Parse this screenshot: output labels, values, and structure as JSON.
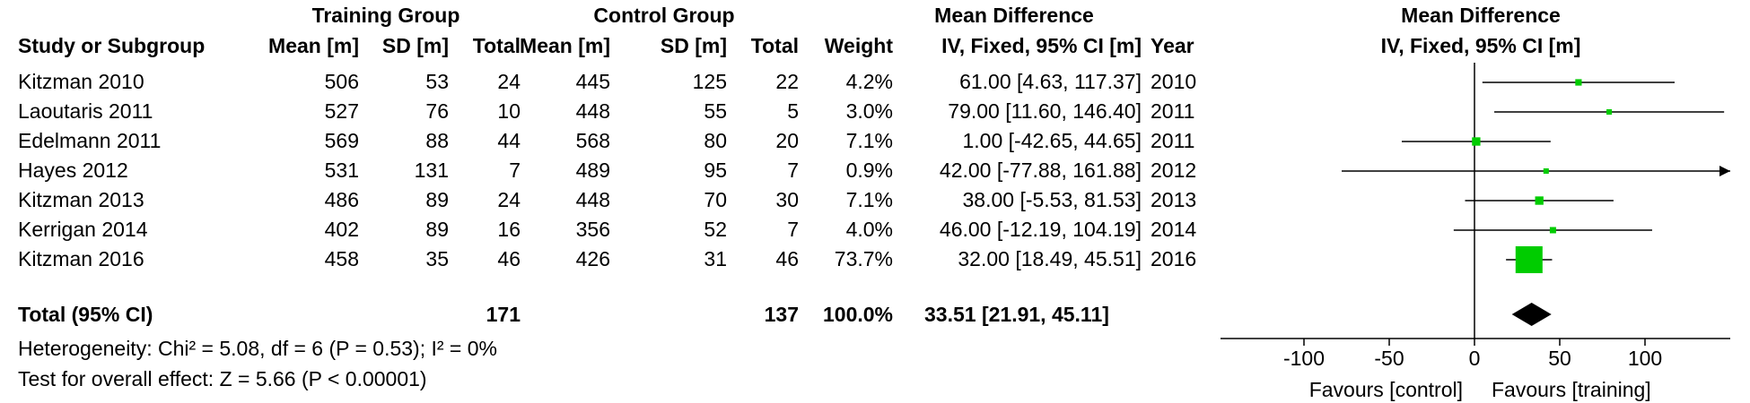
{
  "headers": {
    "group_training": "Training Group",
    "group_control": "Control Group",
    "mean_difference": "Mean Difference",
    "study": "Study or Subgroup",
    "mean_t": "Mean [m]",
    "sd_t": "SD [m]",
    "total_t": "Total",
    "mean_c": "Mean [m]",
    "sd_c": "SD [m]",
    "total_c": "Total",
    "weight": "Weight",
    "ci": "IV, Fixed, 95% CI [m]",
    "year": "Year",
    "plot_title": "Mean Difference",
    "plot_subtitle": "IV, Fixed, 95% CI [m]"
  },
  "studies": [
    {
      "name": "Kitzman 2010",
      "mean_t": "506",
      "sd_t": "53",
      "total_t": "24",
      "mean_c": "445",
      "sd_c": "125",
      "total_c": "22",
      "weight": "4.2%",
      "ci": "61.00 [4.63, 117.37]",
      "year": "2010"
    },
    {
      "name": "Laoutaris 2011",
      "mean_t": "527",
      "sd_t": "76",
      "total_t": "10",
      "mean_c": "448",
      "sd_c": "55",
      "total_c": "5",
      "weight": "3.0%",
      "ci": "79.00 [11.60, 146.40]",
      "year": "2011"
    },
    {
      "name": "Edelmann 2011",
      "mean_t": "569",
      "sd_t": "88",
      "total_t": "44",
      "mean_c": "568",
      "sd_c": "80",
      "total_c": "20",
      "weight": "7.1%",
      "ci": "1.00 [-42.65, 44.65]",
      "year": "2011"
    },
    {
      "name": "Hayes 2012",
      "mean_t": "531",
      "sd_t": "131",
      "total_t": "7",
      "mean_c": "489",
      "sd_c": "95",
      "total_c": "7",
      "weight": "0.9%",
      "ci": "42.00 [-77.88, 161.88]",
      "year": "2012"
    },
    {
      "name": "Kitzman 2013",
      "mean_t": "486",
      "sd_t": "89",
      "total_t": "24",
      "mean_c": "448",
      "sd_c": "70",
      "total_c": "30",
      "weight": "7.1%",
      "ci": "38.00 [-5.53, 81.53]",
      "year": "2013"
    },
    {
      "name": "Kerrigan 2014",
      "mean_t": "402",
      "sd_t": "89",
      "total_t": "16",
      "mean_c": "356",
      "sd_c": "52",
      "total_c": "7",
      "weight": "4.0%",
      "ci": "46.00 [-12.19, 104.19]",
      "year": "2014"
    },
    {
      "name": "Kitzman 2016",
      "mean_t": "458",
      "sd_t": "35",
      "total_t": "46",
      "mean_c": "426",
      "sd_c": "31",
      "total_c": "46",
      "weight": "73.7%",
      "ci": "32.00 [18.49, 45.51]",
      "year": "2016"
    }
  ],
  "total": {
    "label": "Total (95% CI)",
    "total_t": "171",
    "total_c": "137",
    "weight": "100.0%",
    "ci": "33.51 [21.91, 45.11]"
  },
  "heterogeneity": "Heterogeneity: Chi² = 5.08, df = 6 (P = 0.53); I² = 0%",
  "overall_effect": "Test for overall effect: Z = 5.66 (P < 0.00001)",
  "favours_left": "Favours [control]",
  "favours_right": "Favours [training]",
  "chart_data": {
    "type": "forest",
    "xlim": [
      -150,
      150
    ],
    "ticks": [
      -100,
      -50,
      0,
      50,
      100
    ],
    "tick_labels": [
      "-100",
      "-50",
      "0",
      "50",
      "100"
    ],
    "marker_color": "#00cc00",
    "diamond_color": "#000000",
    "points": [
      {
        "estimate": 61.0,
        "lower": 4.63,
        "upper": 117.37,
        "weight": 4.2
      },
      {
        "estimate": 79.0,
        "lower": 11.6,
        "upper": 146.4,
        "weight": 3.0
      },
      {
        "estimate": 1.0,
        "lower": -42.65,
        "upper": 44.65,
        "weight": 7.1
      },
      {
        "estimate": 42.0,
        "lower": -77.88,
        "upper": 161.88,
        "weight": 0.9
      },
      {
        "estimate": 38.0,
        "lower": -5.53,
        "upper": 81.53,
        "weight": 7.1
      },
      {
        "estimate": 46.0,
        "lower": -12.19,
        "upper": 104.19,
        "weight": 4.0
      },
      {
        "estimate": 32.0,
        "lower": 18.49,
        "upper": 45.51,
        "weight": 73.7
      }
    ],
    "pooled": {
      "estimate": 33.51,
      "lower": 21.91,
      "upper": 45.11
    }
  }
}
